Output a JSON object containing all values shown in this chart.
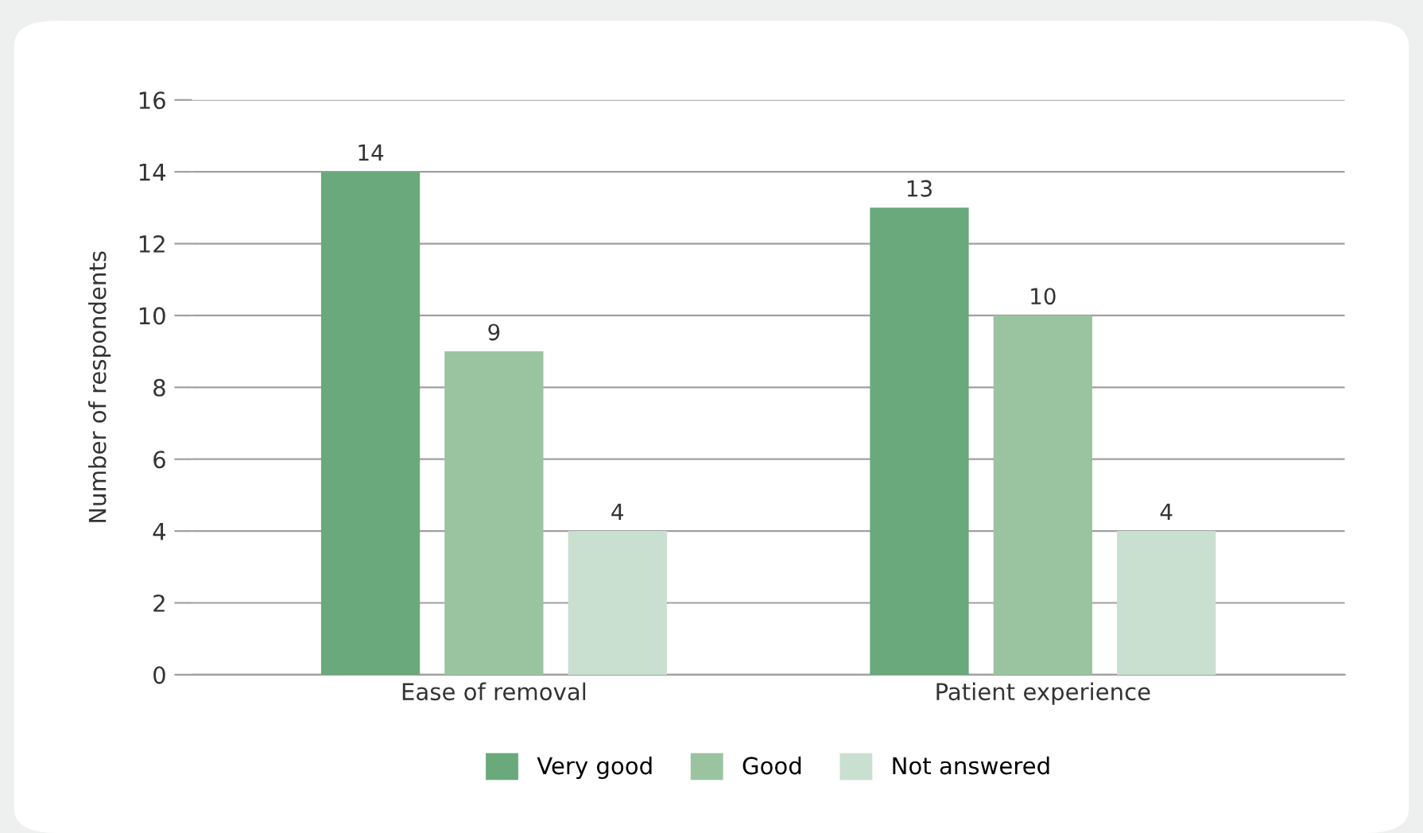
{
  "chart_data": {
    "type": "bar",
    "ylabel": "Number of respondents",
    "categories": [
      "Ease of removal",
      "Patient experience"
    ],
    "series": [
      {
        "name": "Very good",
        "color": "#69a97b",
        "values": [
          14,
          13
        ]
      },
      {
        "name": "Good",
        "color": "#9ac4a0",
        "values": [
          9,
          10
        ]
      },
      {
        "name": "Not answered",
        "color": "#c9dfd0",
        "values": [
          4,
          4
        ]
      }
    ],
    "ylim": [
      0,
      16
    ],
    "yticks": [
      0,
      2,
      4,
      6,
      8,
      10,
      12,
      14,
      16
    ],
    "grid": "y",
    "legend": "bottom",
    "data_labels": true
  }
}
